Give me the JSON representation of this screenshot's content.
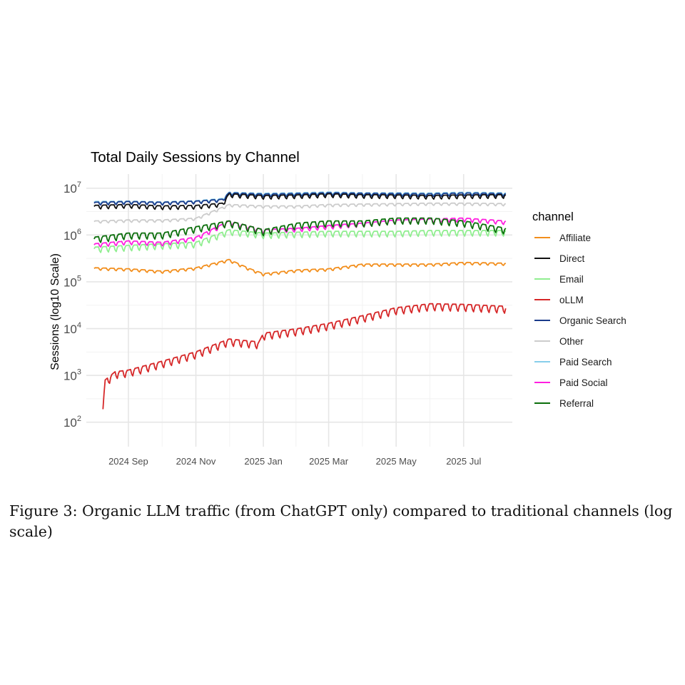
{
  "chart_data": {
    "type": "line",
    "title": "Total Daily Sessions by Channel",
    "xlabel": "",
    "ylabel": "Sessions (log10 Scale)",
    "y_scale": "log10",
    "ylim": [
      30,
      20000000
    ],
    "y_ticks": [
      {
        "value": 100,
        "base": "10",
        "exp": "2"
      },
      {
        "value": 1000,
        "base": "10",
        "exp": "3"
      },
      {
        "value": 10000,
        "base": "10",
        "exp": "4"
      },
      {
        "value": 100000,
        "base": "10",
        "exp": "5"
      },
      {
        "value": 1000000,
        "base": "10",
        "exp": "6"
      },
      {
        "value": 10000000,
        "base": "10",
        "exp": "7"
      }
    ],
    "xlim": [
      "2024-07-25",
      "2025-08-14"
    ],
    "x_ticks": [
      {
        "date": "2024-09-01",
        "label": "2024 Sep"
      },
      {
        "date": "2024-11-01",
        "label": "2024 Nov"
      },
      {
        "date": "2025-01-01",
        "label": "2025 Jan"
      },
      {
        "date": "2025-03-01",
        "label": "2025 Mar"
      },
      {
        "date": "2025-05-01",
        "label": "2025 May"
      },
      {
        "date": "2025-07-01",
        "label": "2025 Jul"
      }
    ],
    "grid": true,
    "legend": {
      "title": "channel",
      "position": "right"
    },
    "series": [
      {
        "name": "Affiliate",
        "color": "#F28E1C",
        "x": [
          "2024-08-01",
          "2024-09-01",
          "2024-10-01",
          "2024-11-01",
          "2024-12-01",
          "2024-12-20",
          "2025-01-01",
          "2025-02-01",
          "2025-03-01",
          "2025-04-01",
          "2025-05-01",
          "2025-06-01",
          "2025-07-01",
          "2025-08-08"
        ],
        "values": [
          200000,
          190000,
          170000,
          200000,
          300000,
          190000,
          150000,
          180000,
          190000,
          240000,
          240000,
          240000,
          260000,
          250000
        ]
      },
      {
        "name": "Direct",
        "color": "#111111",
        "x": [
          "2024-08-01",
          "2024-09-01",
          "2024-10-01",
          "2024-11-01",
          "2024-11-25",
          "2024-12-01",
          "2025-01-01",
          "2025-02-01",
          "2025-03-01",
          "2025-04-01",
          "2025-05-01",
          "2025-06-01",
          "2025-07-01",
          "2025-08-08"
        ],
        "values": [
          4300000,
          4500000,
          4200000,
          4300000,
          4800000,
          7600000,
          7000000,
          7200000,
          7600000,
          7300000,
          7200000,
          7000000,
          7200000,
          7300000
        ]
      },
      {
        "name": "Email",
        "color": "#90EE90",
        "x": [
          "2024-08-01",
          "2024-09-01",
          "2024-10-01",
          "2024-11-01",
          "2024-12-01",
          "2025-01-01",
          "2025-02-01",
          "2025-03-01",
          "2025-04-01",
          "2025-05-01",
          "2025-06-01",
          "2025-07-01",
          "2025-08-08"
        ],
        "values": [
          550000,
          600000,
          650000,
          700000,
          1300000,
          1100000,
          1150000,
          1200000,
          1200000,
          1200000,
          1250000,
          1250000,
          1250000
        ]
      },
      {
        "name": "oLLM",
        "color": "#D62728",
        "x": [
          "2024-08-09",
          "2024-08-11",
          "2024-08-20",
          "2024-09-01",
          "2024-10-01",
          "2024-11-01",
          "2024-12-01",
          "2024-12-28",
          "2025-01-01",
          "2025-02-01",
          "2025-03-01",
          "2025-04-01",
          "2025-05-01",
          "2025-06-01",
          "2025-07-01",
          "2025-08-08"
        ],
        "values": [
          210,
          800,
          1200,
          1300,
          2000,
          3200,
          6000,
          5200,
          8000,
          10000,
          13000,
          19000,
          28000,
          34000,
          33000,
          30000
        ]
      },
      {
        "name": "Organic Search",
        "color": "#1A3A8A",
        "x": [
          "2024-08-01",
          "2024-09-01",
          "2024-10-01",
          "2024-11-01",
          "2024-11-25",
          "2024-12-01",
          "2025-01-01",
          "2025-02-01",
          "2025-03-01",
          "2025-04-01",
          "2025-05-01",
          "2025-06-01",
          "2025-07-01",
          "2025-08-08"
        ],
        "values": [
          5000000,
          5200000,
          5000000,
          5300000,
          5800000,
          8000000,
          7500000,
          7700000,
          8000000,
          7800000,
          7700000,
          7600000,
          7900000,
          7700000
        ]
      },
      {
        "name": "Other",
        "color": "#CCCCCC",
        "x": [
          "2024-08-01",
          "2024-09-01",
          "2024-10-01",
          "2024-11-01",
          "2024-12-01",
          "2025-01-01",
          "2025-02-01",
          "2025-03-01",
          "2025-04-01",
          "2025-05-01",
          "2025-06-01",
          "2025-07-01",
          "2025-08-08"
        ],
        "values": [
          2000000,
          2100000,
          2100000,
          2300000,
          4500000,
          4200000,
          4200000,
          4500000,
          4600000,
          4700000,
          4800000,
          4800000,
          4700000
        ]
      },
      {
        "name": "Paid Search",
        "color": "#87CEEB",
        "x": [
          "2024-08-01",
          "2024-09-01",
          "2024-10-01",
          "2024-11-01",
          "2024-11-25",
          "2024-12-01",
          "2025-01-01",
          "2025-02-01",
          "2025-03-01",
          "2025-04-01",
          "2025-05-01",
          "2025-06-01",
          "2025-07-01",
          "2025-08-08"
        ],
        "values": [
          5200000,
          5300000,
          5100000,
          5400000,
          6000000,
          8200000,
          7800000,
          8000000,
          8300000,
          8000000,
          8000000,
          7900000,
          8200000,
          8000000
        ]
      },
      {
        "name": "Paid Social",
        "color": "#FF1FE0",
        "x": [
          "2024-08-01",
          "2024-09-01",
          "2024-10-01",
          "2024-11-01",
          "2024-12-01",
          "2025-01-01",
          "2025-02-01",
          "2025-03-01",
          "2025-04-01",
          "2025-05-01",
          "2025-06-01",
          "2025-07-01",
          "2025-08-08"
        ],
        "values": [
          650000,
          750000,
          700000,
          900000,
          2000000,
          1300000,
          1400000,
          1600000,
          1800000,
          2100000,
          2200000,
          2300000,
          2000000
        ]
      },
      {
        "name": "Referral",
        "color": "#0B6E0B",
        "x": [
          "2024-08-01",
          "2024-09-01",
          "2024-10-01",
          "2024-11-01",
          "2024-12-01",
          "2025-01-01",
          "2025-02-01",
          "2025-03-01",
          "2025-04-01",
          "2025-05-01",
          "2025-06-01",
          "2025-07-01",
          "2025-08-08"
        ],
        "values": [
          900000,
          1100000,
          1100000,
          1500000,
          2000000,
          1300000,
          1800000,
          2000000,
          2000000,
          2300000,
          2300000,
          2000000,
          1400000
        ]
      }
    ]
  },
  "caption": "Figure 3: Organic LLM traffic (from ChatGPT only) compared to traditional channels (log scale)"
}
